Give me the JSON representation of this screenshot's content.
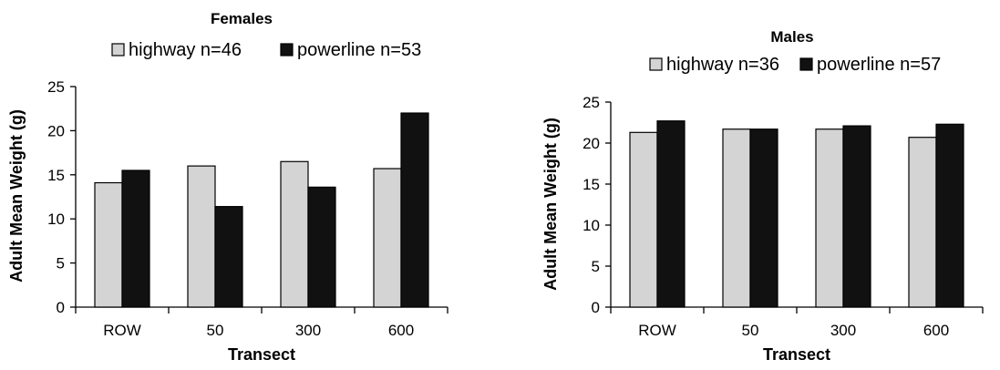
{
  "chart_data": [
    {
      "type": "bar",
      "title": "Females",
      "xlabel": "Transect",
      "ylabel": "Adult Mean Weight (g)",
      "ylim": [
        0,
        25
      ],
      "yticks": [
        0,
        5,
        10,
        15,
        20,
        25
      ],
      "categories": [
        "ROW",
        "50",
        "300",
        "600"
      ],
      "legend_position": "top",
      "series": [
        {
          "name": "highway n=46",
          "color": "#d4d4d4",
          "values": [
            14.1,
            16.0,
            16.5,
            15.7
          ]
        },
        {
          "name": "powerline n=53",
          "color": "#111111",
          "values": [
            15.5,
            11.4,
            13.6,
            22.0
          ]
        }
      ]
    },
    {
      "type": "bar",
      "title": "Males",
      "xlabel": "Transect",
      "ylabel": "Adult Mean Weight (g)",
      "ylim": [
        0,
        25
      ],
      "yticks": [
        0,
        5,
        10,
        15,
        20,
        25
      ],
      "categories": [
        "ROW",
        "50",
        "300",
        "600"
      ],
      "legend_position": "top",
      "series": [
        {
          "name": "highway n=36",
          "color": "#d4d4d4",
          "values": [
            21.3,
            21.7,
            21.7,
            20.7
          ]
        },
        {
          "name": "powerline n=57",
          "color": "#111111",
          "values": [
            22.7,
            21.7,
            22.1,
            22.3
          ]
        }
      ]
    }
  ]
}
